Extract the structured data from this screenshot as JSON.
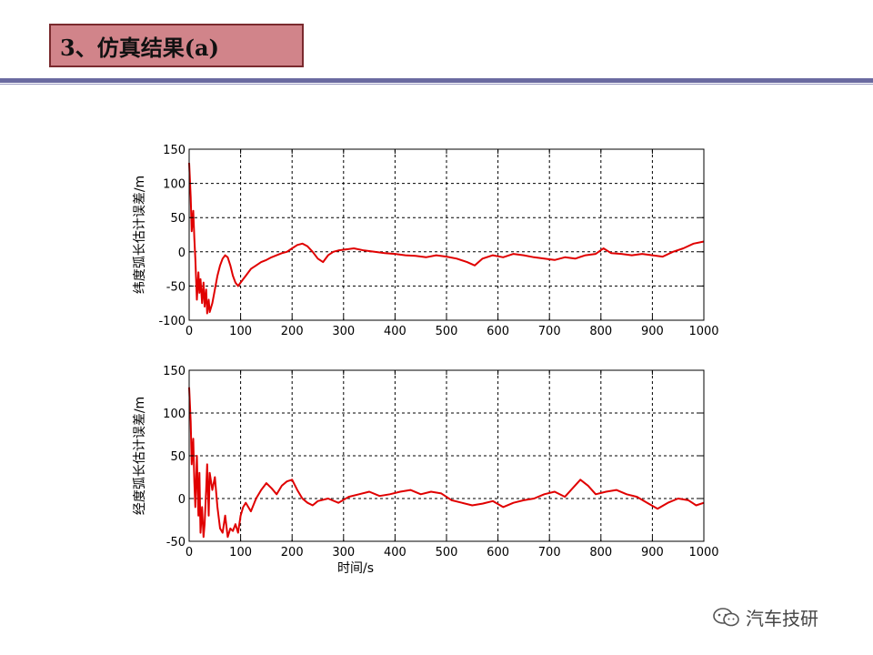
{
  "slide": {
    "title": "3、仿真结果(a)",
    "watermark": "汽车技研",
    "colors": {
      "title_fill": "#d1848a",
      "title_border": "#7a2a2e",
      "rule": "#6a6aa0",
      "series": "#e00000"
    }
  },
  "chart_data": [
    {
      "type": "line",
      "ylabel": "纬度弧长估计误差/m",
      "xlabel": "",
      "xlim": [
        0,
        1000
      ],
      "ylim": [
        -100,
        150
      ],
      "xticks": [
        "0",
        "100",
        "200",
        "300",
        "400",
        "500",
        "600",
        "700",
        "800",
        "900",
        "1000"
      ],
      "yticks": [
        "150",
        "100",
        "50",
        "0",
        "-50",
        "-100"
      ],
      "grid": true,
      "series": [
        {
          "x": [
            0,
            3,
            5,
            8,
            10,
            12,
            15,
            18,
            20,
            22,
            25,
            28,
            30,
            33,
            35,
            38,
            40,
            45,
            50,
            55,
            60,
            65,
            70,
            75,
            80,
            85,
            90,
            95,
            100,
            105,
            110,
            120,
            130,
            140,
            150,
            160,
            170,
            180,
            190,
            200,
            210,
            220,
            230,
            240,
            250,
            260,
            270,
            280,
            290,
            300,
            320,
            340,
            360,
            380,
            400,
            420,
            440,
            460,
            480,
            500,
            520,
            540,
            555,
            570,
            590,
            610,
            630,
            650,
            670,
            690,
            710,
            730,
            750,
            770,
            790,
            805,
            820,
            840,
            860,
            880,
            900,
            920,
            940,
            960,
            980,
            1000
          ],
          "y": [
            130,
            80,
            30,
            60,
            20,
            -10,
            -70,
            -30,
            -60,
            -40,
            -75,
            -45,
            -80,
            -55,
            -90,
            -70,
            -88,
            -75,
            -55,
            -35,
            -20,
            -10,
            -5,
            -8,
            -20,
            -35,
            -45,
            -50,
            -45,
            -40,
            -35,
            -25,
            -20,
            -15,
            -12,
            -8,
            -5,
            -2,
            0,
            5,
            10,
            12,
            8,
            0,
            -10,
            -15,
            -5,
            0,
            2,
            3,
            5,
            2,
            0,
            -2,
            -3,
            -5,
            -6,
            -8,
            -5,
            -7,
            -10,
            -15,
            -20,
            -10,
            -5,
            -8,
            -3,
            -5,
            -8,
            -10,
            -12,
            -8,
            -10,
            -5,
            -3,
            5,
            -2,
            -3,
            -5,
            -3,
            -5,
            -7,
            0,
            5,
            12,
            15
          ]
        }
      ]
    },
    {
      "type": "line",
      "ylabel": "经度弧长估计误差/m",
      "xlabel": "时间/s",
      "xlim": [
        0,
        1000
      ],
      "ylim": [
        -50,
        150
      ],
      "xticks": [
        "0",
        "100",
        "200",
        "300",
        "400",
        "500",
        "600",
        "700",
        "800",
        "900",
        "1000"
      ],
      "yticks": [
        "150",
        "100",
        "50",
        "0",
        "-50"
      ],
      "grid": true,
      "series": [
        {
          "x": [
            0,
            3,
            5,
            8,
            10,
            12,
            15,
            18,
            20,
            22,
            25,
            28,
            30,
            33,
            35,
            38,
            40,
            45,
            50,
            55,
            60,
            65,
            70,
            75,
            80,
            85,
            90,
            95,
            100,
            105,
            110,
            120,
            130,
            140,
            150,
            160,
            170,
            180,
            190,
            200,
            210,
            220,
            230,
            240,
            250,
            270,
            290,
            310,
            330,
            350,
            370,
            390,
            410,
            430,
            450,
            470,
            490,
            510,
            530,
            550,
            570,
            590,
            610,
            630,
            650,
            670,
            690,
            710,
            730,
            745,
            760,
            775,
            790,
            810,
            830,
            850,
            870,
            890,
            910,
            930,
            950,
            970,
            985,
            1000
          ],
          "y": [
            130,
            90,
            40,
            70,
            20,
            -10,
            50,
            -20,
            30,
            -40,
            -10,
            -45,
            -30,
            10,
            40,
            -20,
            30,
            10,
            25,
            -10,
            -35,
            -40,
            -20,
            -45,
            -35,
            -38,
            -30,
            -40,
            -20,
            -10,
            -5,
            -15,
            0,
            10,
            18,
            12,
            5,
            15,
            20,
            22,
            10,
            0,
            -5,
            -8,
            -3,
            0,
            -5,
            2,
            5,
            8,
            3,
            5,
            8,
            10,
            5,
            8,
            6,
            -2,
            -5,
            -8,
            -6,
            -3,
            -10,
            -5,
            -2,
            0,
            5,
            8,
            2,
            12,
            22,
            15,
            5,
            8,
            10,
            5,
            2,
            -5,
            -12,
            -5,
            0,
            -2,
            -8,
            -5
          ]
        }
      ]
    }
  ]
}
